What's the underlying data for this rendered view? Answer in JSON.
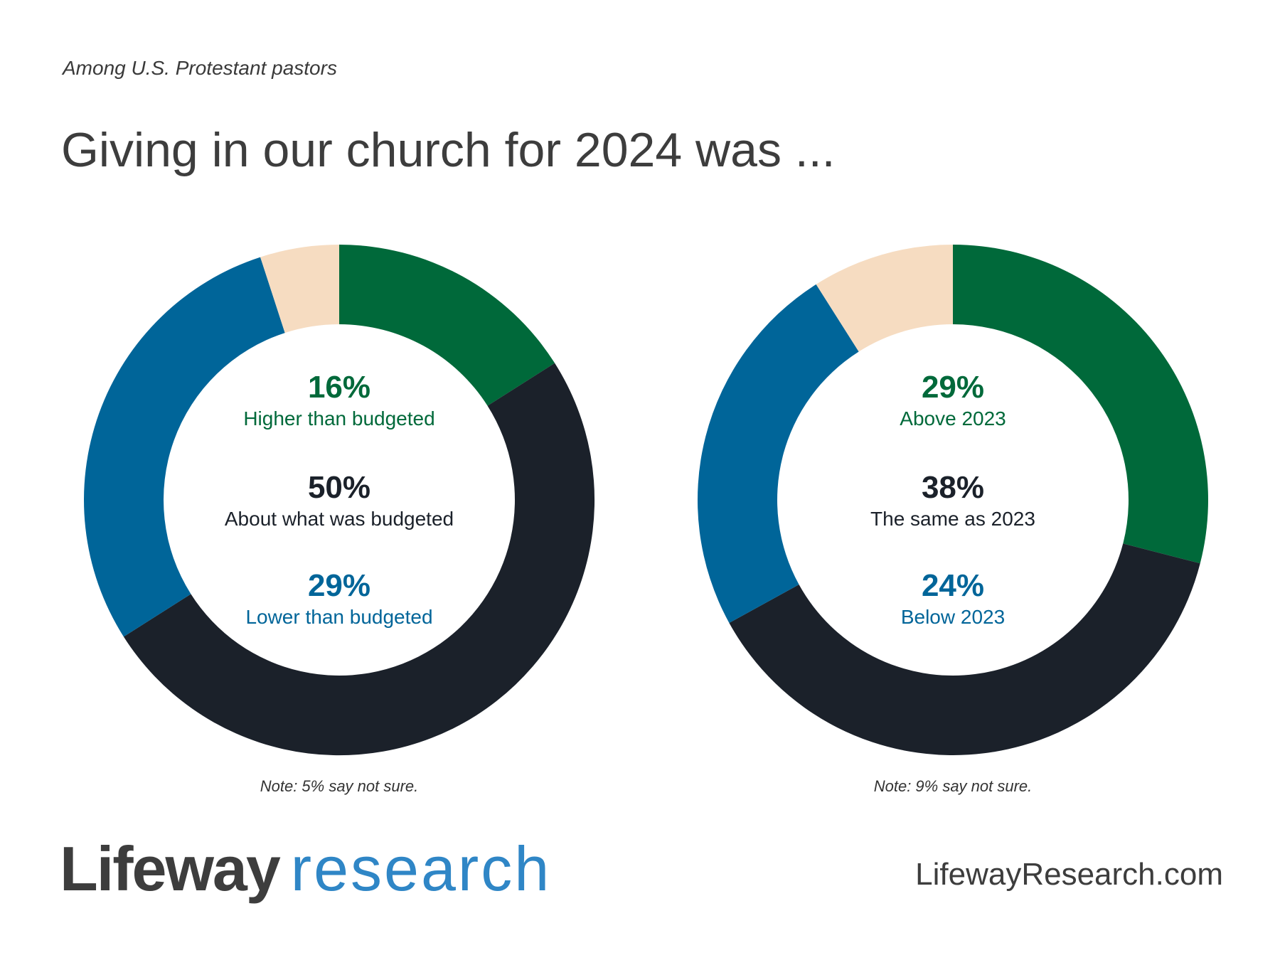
{
  "header": {
    "subtitle": "Among U.S. Protestant pastors",
    "title": "Giving in our church for 2024 was ..."
  },
  "colors": {
    "green": "#00693a",
    "navy": "#1b212a",
    "blue": "#006599",
    "peach": "#f6dcc1"
  },
  "chart_data": [
    {
      "type": "pie",
      "variant": "donut",
      "slices": [
        {
          "label": "Higher than budgeted",
          "value": 16,
          "display": "16%",
          "color": "#00693a"
        },
        {
          "label": "About what was  budgeted",
          "value": 50,
          "display": "50%",
          "color": "#1b212a"
        },
        {
          "label": "Lower than budgeted",
          "value": 29,
          "display": "29%",
          "color": "#006599"
        },
        {
          "label": "",
          "value": 5,
          "display": "",
          "color": "#f6dcc1"
        }
      ],
      "note": "Note: 5% say not sure."
    },
    {
      "type": "pie",
      "variant": "donut",
      "slices": [
        {
          "label": "Above 2023",
          "value": 29,
          "display": "29%",
          "color": "#00693a"
        },
        {
          "label": "The same as 2023",
          "value": 38,
          "display": "38%",
          "color": "#1b212a"
        },
        {
          "label": "Below 2023",
          "value": 24,
          "display": "24%",
          "color": "#006599"
        },
        {
          "label": "",
          "value": 9,
          "display": "",
          "color": "#f6dcc1"
        }
      ],
      "note": "Note: 9% say not sure."
    }
  ],
  "footer": {
    "logo_word1": "Lifeway",
    "logo_word2": "research",
    "website": "LifewayResearch.com"
  }
}
